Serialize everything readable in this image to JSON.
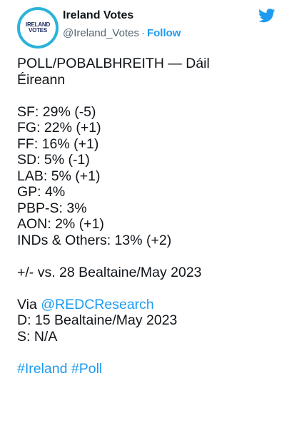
{
  "account": {
    "name": "Ireland Votes",
    "handle": "@Ireland_Votes",
    "separator": "·",
    "follow_label": "Follow",
    "avatar_text_line1": "IRELAND",
    "avatar_text_line2": "VOTES"
  },
  "tweet": {
    "title_line1": "POLL/POBALBHREITH — Dáil",
    "title_line2": "Éireann",
    "results": [
      "SF: 29% (-5)",
      "FG: 22% (+1)",
      "FF: 16% (+1)",
      "SD: 5% (-1)",
      "LAB: 5% (+1)",
      "GP: 4%",
      "PBP-S: 3%",
      "AON: 2% (+1)",
      "INDs & Others: 13% (+2)"
    ],
    "comparison": "+/- vs. 28 Bealtaine/May 2023",
    "via_prefix": "Via ",
    "via_link": "@REDCResearch",
    "date_line": "D: 15 Bealtaine/May 2023",
    "sample_line": "S: N/A",
    "hashtag1": "#Ireland",
    "hashtag2": "#Poll"
  },
  "colors": {
    "link": "#1d9bf0",
    "avatar_ring": "#2bb3d8",
    "text": "#0f1419",
    "muted": "#536471"
  },
  "icons": {
    "brand": "twitter-bird-icon"
  }
}
